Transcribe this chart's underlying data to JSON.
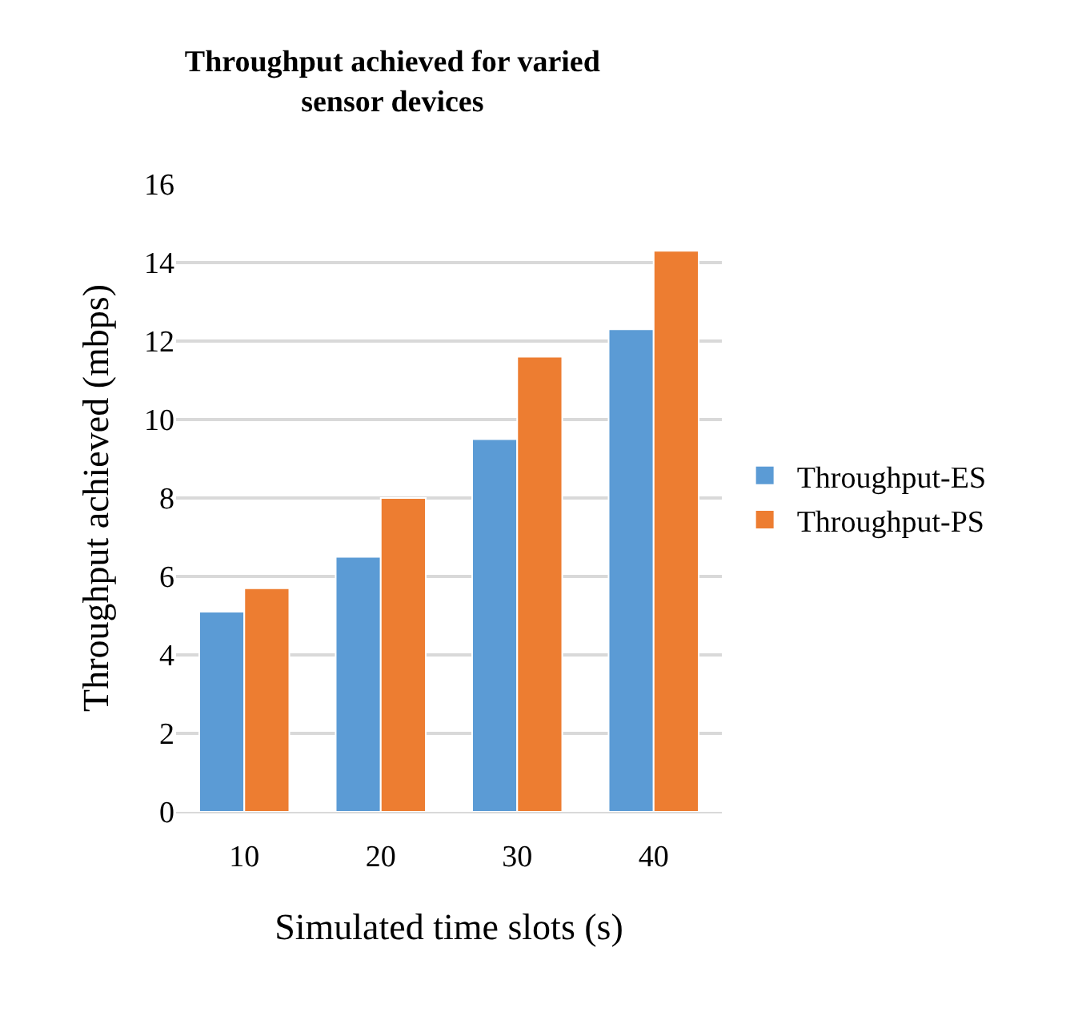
{
  "chart_data": {
    "type": "bar",
    "title": "Throughput achieved for varied sensor devices",
    "xlabel": "Simulated time slots (s)",
    "ylabel": "Throughput achieved (mbps)",
    "categories": [
      "10",
      "20",
      "30",
      "40"
    ],
    "series": [
      {
        "name": "Throughput-ES",
        "color": "#5b9bd5",
        "values": [
          5.1,
          6.5,
          9.5,
          12.3
        ]
      },
      {
        "name": "Throughput-PS",
        "color": "#ed7d31",
        "values": [
          5.7,
          8.0,
          11.6,
          14.3
        ]
      }
    ],
    "ylim": [
      0,
      16
    ],
    "yticks": [
      0,
      2,
      4,
      6,
      8,
      10,
      12,
      14,
      16
    ],
    "grid": "y",
    "legend": "right"
  }
}
